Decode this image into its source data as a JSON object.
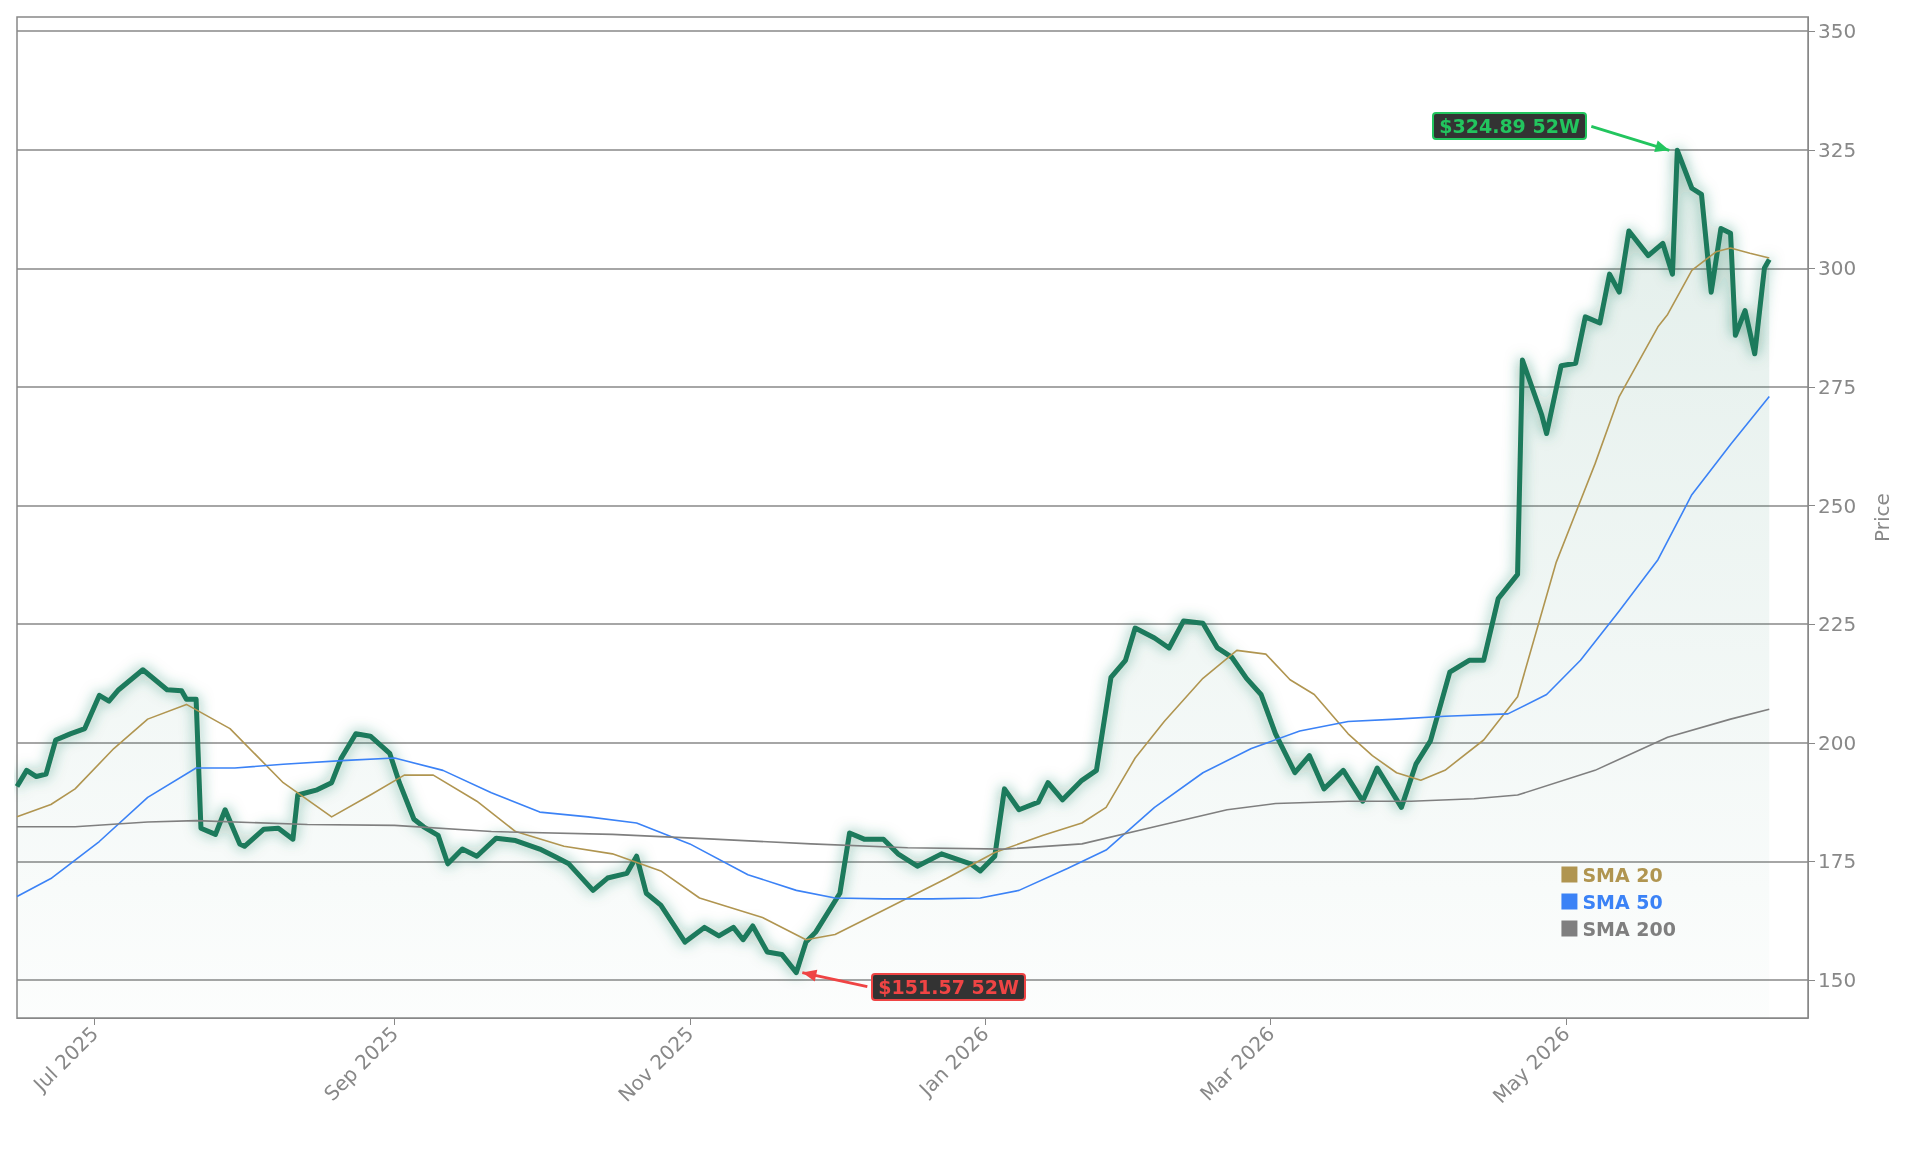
{
  "chart_data": {
    "type": "line",
    "ylabel": "Price",
    "xlim": [
      "2025-06-15",
      "2026-06-20"
    ],
    "xticks": [
      {
        "value": "2025-07-01",
        "label": "Jul 2025"
      },
      {
        "value": "2025-09-01",
        "label": "Sep 2025"
      },
      {
        "value": "2025-11-01",
        "label": "Nov 2025"
      },
      {
        "value": "2026-01-01",
        "label": "Jan 2026"
      },
      {
        "value": "2026-03-01",
        "label": "Mar 2026"
      },
      {
        "value": "2026-05-01",
        "label": "May 2026"
      }
    ],
    "ylim": [
      142,
      353
    ],
    "yticks": [
      150,
      175,
      200,
      225,
      250,
      275,
      300,
      325,
      350
    ],
    "grid": "y",
    "legend": "bottom right",
    "marker": "none",
    "line_style": "solid",
    "annotations": [
      {
        "text": "$324.89 52W",
        "x": "2026-05-24",
        "y": 324.89
      },
      {
        "text": "$151.57 52W",
        "x": "2025-11-23",
        "y": 151.57
      }
    ],
    "series": [
      {
        "type": "area",
        "color": "#1b7a5b",
        "x": [
          "2025-06-15",
          "2025-06-17",
          "2025-06-19",
          "2025-06-21",
          "2025-06-23",
          "2025-06-26",
          "2025-06-29",
          "2025-07-02",
          "2025-07-04",
          "2025-07-06",
          "2025-07-11",
          "2025-07-16",
          "2025-07-19",
          "2025-07-20",
          "2025-07-22",
          "2025-07-23",
          "2025-07-26",
          "2025-07-28",
          "2025-07-31",
          "2025-08-01",
          "2025-08-05",
          "2025-08-08",
          "2025-08-11",
          "2025-08-12",
          "2025-08-16",
          "2025-08-19",
          "2025-08-21",
          "2025-08-24",
          "2025-08-27",
          "2025-08-31",
          "2025-09-02",
          "2025-09-05",
          "2025-09-07",
          "2025-09-10",
          "2025-09-12",
          "2025-09-15",
          "2025-09-18",
          "2025-09-22",
          "2025-09-26",
          "2025-10-01",
          "2025-10-04",
          "2025-10-07",
          "2025-10-12",
          "2025-10-15",
          "2025-10-19",
          "2025-10-21",
          "2025-10-23",
          "2025-10-26",
          "2025-10-31",
          "2025-11-04",
          "2025-11-07",
          "2025-11-10",
          "2025-11-12",
          "2025-11-14",
          "2025-11-17",
          "2025-11-20",
          "2025-11-23",
          "2025-11-25",
          "2025-11-27",
          "2025-12-02",
          "2025-12-04",
          "2025-12-07",
          "2025-12-11",
          "2025-12-14",
          "2025-12-18",
          "2025-12-23",
          "2025-12-29",
          "2025-12-31",
          "2026-01-03",
          "2026-01-05",
          "2026-01-08",
          "2026-01-12",
          "2026-01-14",
          "2026-01-17",
          "2026-01-21",
          "2026-01-24",
          "2026-01-27",
          "2026-01-30",
          "2026-02-01",
          "2026-02-05",
          "2026-02-08",
          "2026-02-11",
          "2026-02-15",
          "2026-02-18",
          "2026-02-21",
          "2026-02-24",
          "2026-02-27",
          "2026-03-02",
          "2026-03-06",
          "2026-03-09",
          "2026-03-12",
          "2026-03-16",
          "2026-03-20",
          "2026-03-23",
          "2026-03-28",
          "2026-03-31",
          "2026-04-03",
          "2026-04-07",
          "2026-04-11",
          "2026-04-14",
          "2026-04-17",
          "2026-04-21",
          "2026-04-22",
          "2026-04-26",
          "2026-04-27",
          "2026-04-30",
          "2026-05-03",
          "2026-05-05",
          "2026-05-08",
          "2026-05-10",
          "2026-05-12",
          "2026-05-14",
          "2026-05-18",
          "2026-05-21",
          "2026-05-23",
          "2026-05-24",
          "2026-05-27",
          "2026-05-29",
          "2026-05-31",
          "2026-06-02",
          "2026-06-04",
          "2026-06-05",
          "2026-06-07",
          "2026-06-09",
          "2026-06-11",
          "2026-06-12"
        ],
        "values": [
          190.8,
          194.2,
          192.9,
          193.4,
          200.6,
          201.9,
          203.0,
          210.0,
          208.8,
          211.2,
          215.4,
          211.2,
          211.0,
          209.2,
          209.2,
          182.0,
          180.7,
          185.9,
          178.7,
          178.2,
          181.8,
          182.0,
          179.7,
          189.0,
          190.1,
          191.6,
          196.8,
          201.9,
          201.4,
          197.8,
          191.6,
          183.9,
          182.3,
          180.5,
          174.5,
          177.6,
          176.1,
          179.9,
          179.4,
          177.6,
          176.1,
          174.5,
          168.9,
          171.5,
          172.5,
          176.1,
          168.3,
          165.8,
          158.0,
          161.1,
          159.3,
          161.1,
          158.5,
          161.4,
          155.9,
          155.4,
          151.57,
          158.0,
          160.1,
          168.3,
          181.0,
          179.7,
          179.7,
          176.6,
          174.0,
          176.6,
          174.5,
          173.0,
          176.1,
          190.3,
          185.9,
          187.5,
          191.6,
          188.0,
          192.1,
          194.2,
          213.8,
          217.4,
          224.2,
          222.1,
          220.0,
          225.7,
          225.2,
          220.0,
          218.0,
          213.6,
          210.2,
          201.9,
          193.7,
          197.3,
          190.3,
          194.2,
          187.7,
          194.7,
          186.4,
          195.5,
          200.4,
          214.9,
          217.4,
          217.4,
          230.4,
          235.5,
          280.7,
          269.1,
          265.2,
          279.5,
          280.0,
          289.8,
          288.5,
          298.8,
          295.0,
          307.9,
          302.7,
          305.3,
          298.8,
          324.89,
          316.9,
          315.6,
          295.0,
          308.4,
          307.4,
          285.9,
          291.1,
          282.0,
          300.1,
          301.9
        ]
      },
      {
        "name": "SMA 20",
        "color": "#b09550",
        "x": [
          "2025-06-15",
          "2025-06-22",
          "2025-06-27",
          "2025-07-05",
          "2025-07-12",
          "2025-07-20",
          "2025-07-29",
          "2025-08-09",
          "2025-08-19",
          "2025-08-27",
          "2025-09-03",
          "2025-09-09",
          "2025-09-18",
          "2025-09-26",
          "2025-10-06",
          "2025-10-16",
          "2025-10-26",
          "2025-11-03",
          "2025-11-16",
          "2025-11-25",
          "2025-12-01",
          "2025-12-11",
          "2025-12-24",
          "2026-01-03",
          "2026-01-13",
          "2026-01-21",
          "2026-01-26",
          "2026-02-01",
          "2026-02-07",
          "2026-02-15",
          "2026-02-22",
          "2026-02-28",
          "2026-03-05",
          "2026-03-10",
          "2026-03-17",
          "2026-03-22",
          "2026-03-27",
          "2026-04-01",
          "2026-04-06",
          "2026-04-14",
          "2026-04-21",
          "2026-04-29",
          "2026-05-07",
          "2026-05-12",
          "2026-05-20",
          "2026-05-22",
          "2026-05-27",
          "2026-06-01",
          "2026-06-04",
          "2026-06-08",
          "2026-06-12"
        ],
        "values": [
          184.4,
          187.0,
          190.3,
          198.8,
          205.0,
          208.1,
          203.0,
          191.6,
          184.4,
          189.0,
          193.2,
          193.2,
          187.7,
          181.3,
          178.2,
          176.6,
          173.0,
          167.3,
          163.2,
          158.5,
          159.6,
          164.7,
          171.4,
          176.9,
          180.5,
          183.1,
          186.4,
          196.8,
          204.5,
          213.6,
          219.5,
          218.7,
          213.3,
          210.2,
          201.9,
          197.3,
          193.7,
          192.1,
          194.2,
          200.6,
          209.7,
          238.1,
          258.8,
          273.0,
          287.7,
          290.3,
          299.6,
          303.5,
          304.3,
          303.2,
          302.2
        ]
      },
      {
        "name": "SMA 50",
        "color": "#3b82f6",
        "x": [
          "2025-06-15",
          "2025-06-22",
          "2025-07-02",
          "2025-07-12",
          "2025-07-22",
          "2025-07-30",
          "2025-08-09",
          "2025-08-22",
          "2025-09-01",
          "2025-09-11",
          "2025-09-21",
          "2025-10-01",
          "2025-10-11",
          "2025-10-21",
          "2025-11-01",
          "2025-11-13",
          "2025-11-23",
          "2025-12-01",
          "2025-12-11",
          "2025-12-21",
          "2025-12-31",
          "2026-01-08",
          "2026-01-18",
          "2026-01-26",
          "2026-02-05",
          "2026-02-15",
          "2026-02-25",
          "2026-03-07",
          "2026-03-17",
          "2026-03-27",
          "2026-04-06",
          "2026-04-19",
          "2026-04-27",
          "2026-05-04",
          "2026-05-12",
          "2026-05-20",
          "2026-05-27",
          "2026-06-04",
          "2026-06-12"
        ],
        "values": [
          167.6,
          171.4,
          179.2,
          188.5,
          194.7,
          194.7,
          195.5,
          196.3,
          196.8,
          194.2,
          189.5,
          185.4,
          184.4,
          183.1,
          178.7,
          172.2,
          168.9,
          167.3,
          167.1,
          167.1,
          167.3,
          168.9,
          173.5,
          177.4,
          186.4,
          193.7,
          198.8,
          202.5,
          204.5,
          205.0,
          205.6,
          206.1,
          210.2,
          217.4,
          227.8,
          238.6,
          252.3,
          262.9,
          273.0
        ]
      },
      {
        "name": "SMA 200",
        "color": "#7f7f7f",
        "x": [
          "2025-06-15",
          "2025-06-27",
          "2025-07-12",
          "2025-07-22",
          "2025-08-14",
          "2025-09-01",
          "2025-09-21",
          "2025-10-16",
          "2025-11-06",
          "2025-11-26",
          "2025-12-16",
          "2026-01-05",
          "2026-01-21",
          "2026-02-05",
          "2026-02-20",
          "2026-03-02",
          "2026-03-17",
          "2026-03-30",
          "2026-04-12",
          "2026-04-21",
          "2026-05-07",
          "2026-05-22",
          "2026-06-04",
          "2026-06-12"
        ],
        "values": [
          182.3,
          182.3,
          183.3,
          183.6,
          182.8,
          182.6,
          181.3,
          180.7,
          179.7,
          178.7,
          177.9,
          177.6,
          178.7,
          182.3,
          185.9,
          187.2,
          187.7,
          187.7,
          188.2,
          189.0,
          194.2,
          201.2,
          205.0,
          207.1
        ]
      }
    ]
  }
}
